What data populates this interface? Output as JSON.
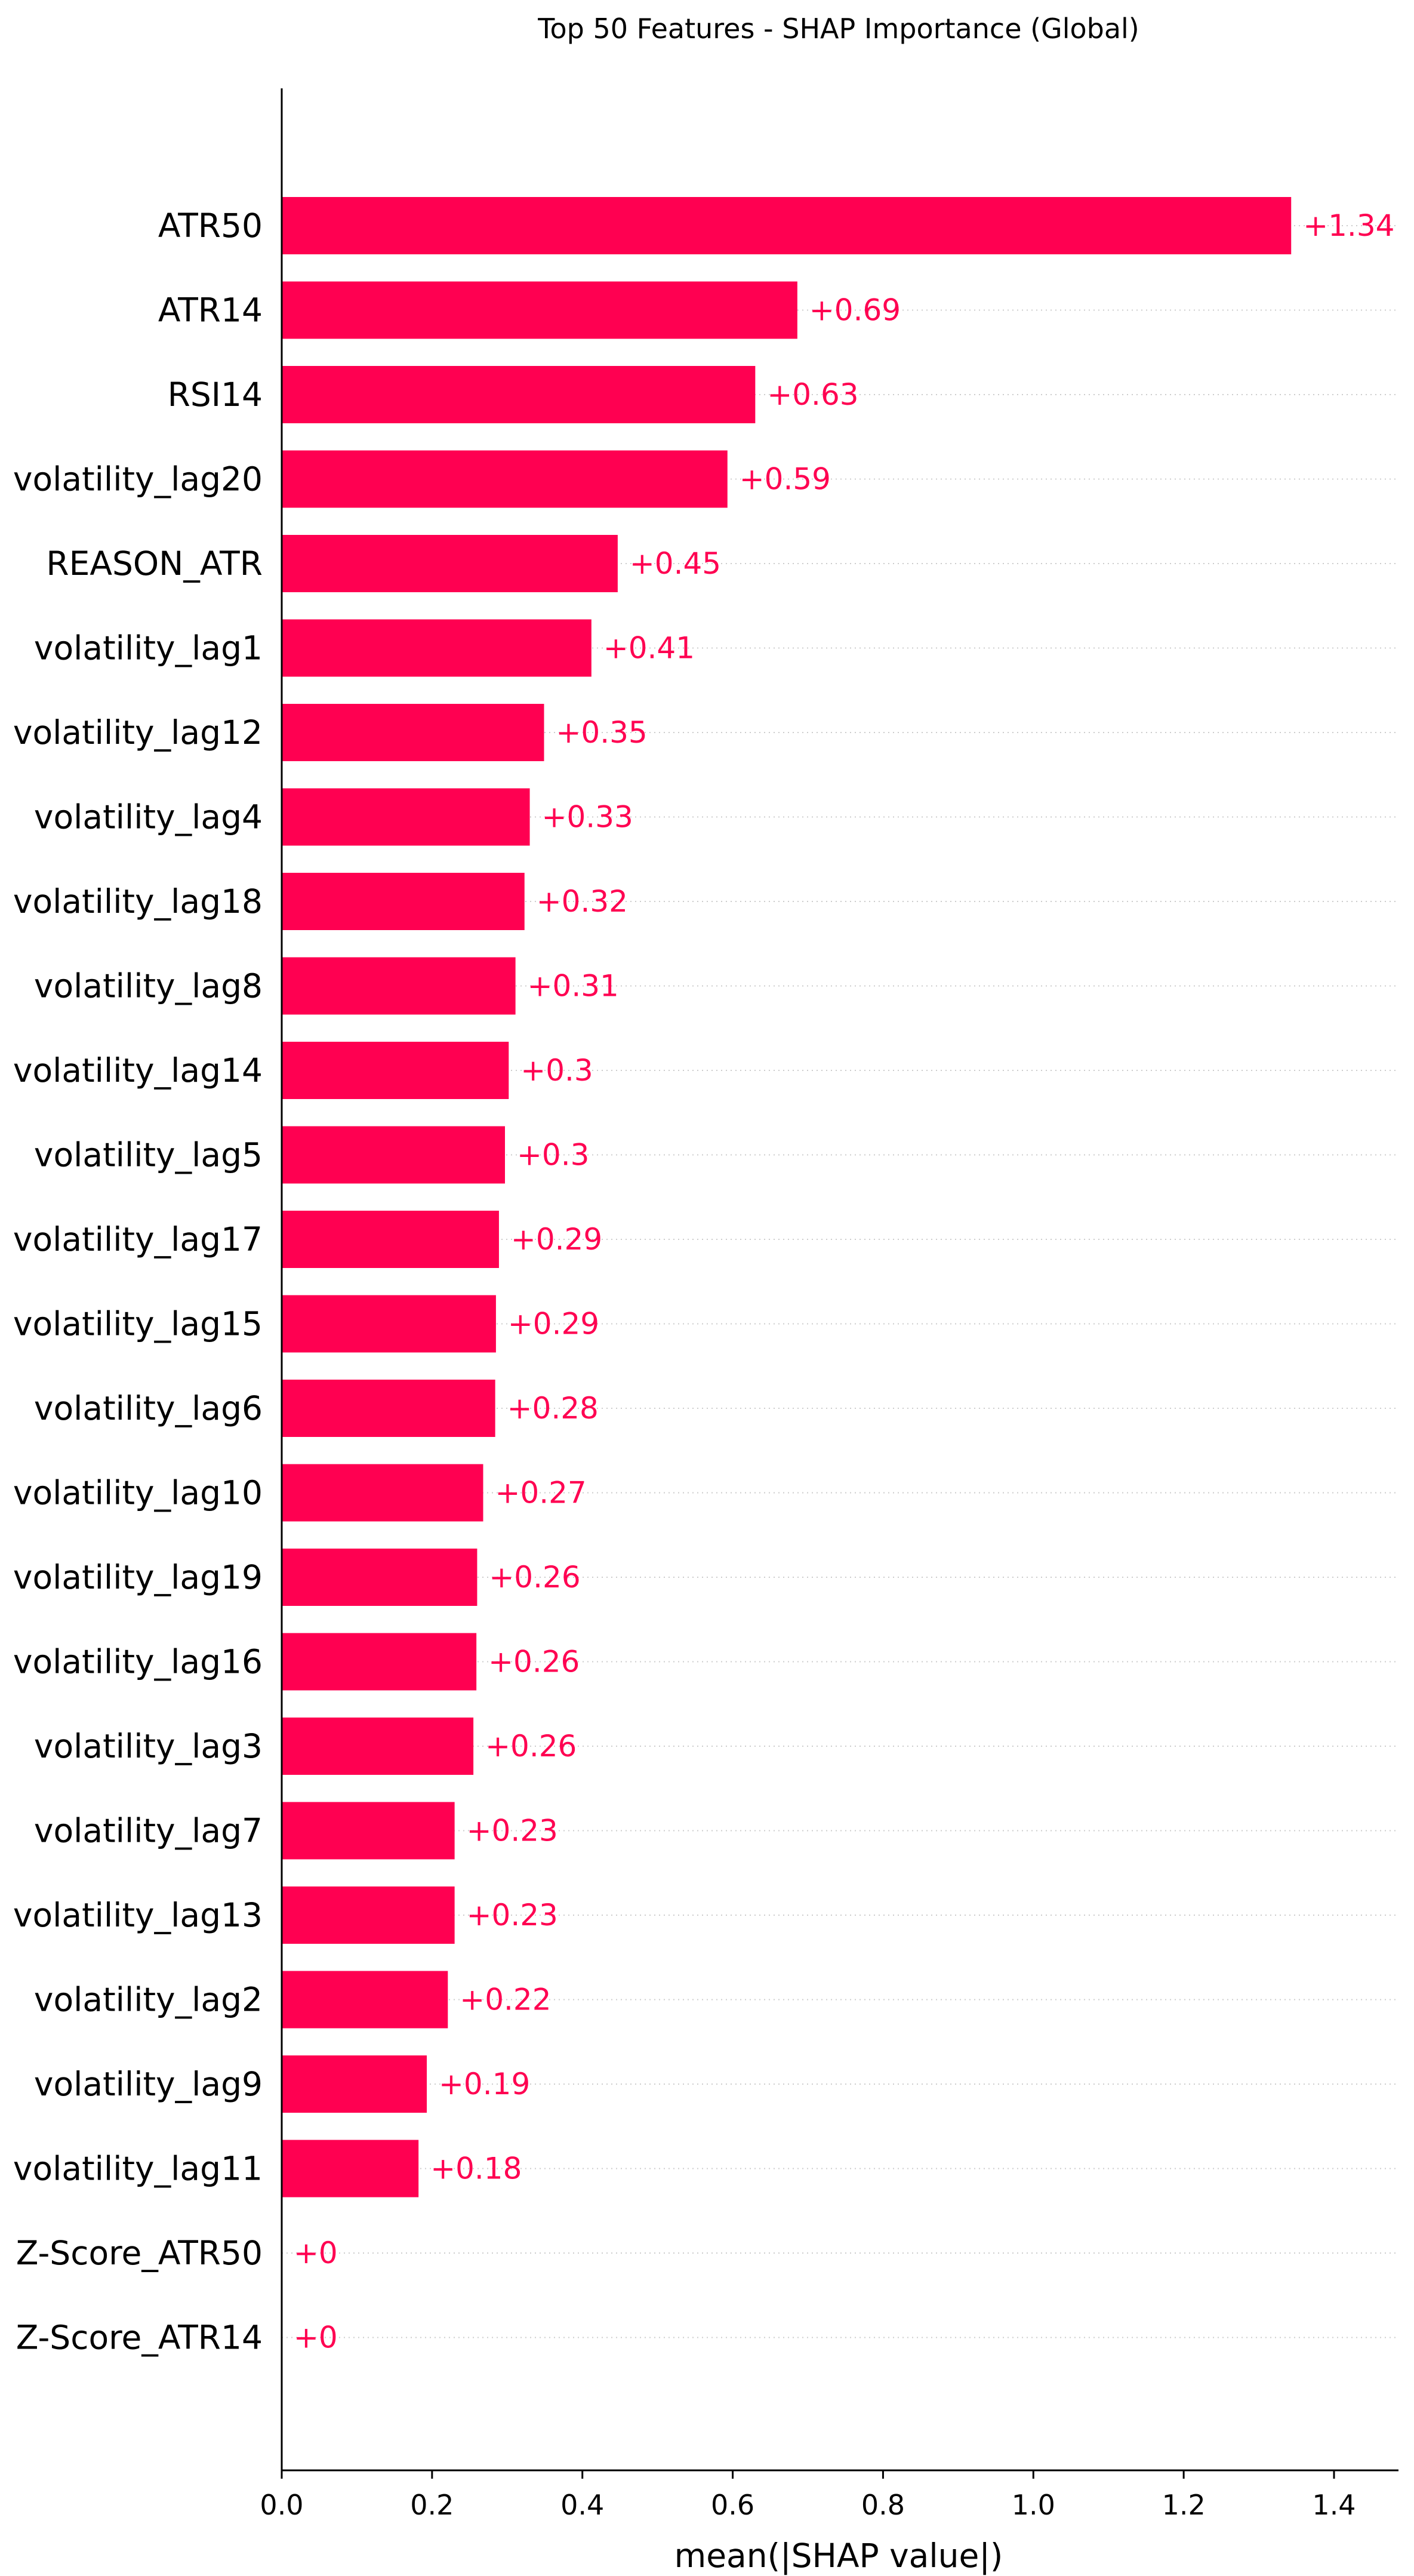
{
  "chart_data": {
    "type": "bar",
    "orientation": "horizontal",
    "title": "Top 50 Features - SHAP Importance (Global)",
    "xlabel": "mean(|SHAP value|)",
    "ylabel": "",
    "xlim": [
      0,
      1.48
    ],
    "xticks": [
      "0.0",
      "0.2",
      "0.4",
      "0.6",
      "0.8",
      "1.0",
      "1.2",
      "1.4"
    ],
    "xtick_values": [
      0,
      0.2,
      0.4,
      0.6,
      0.8,
      1.0,
      1.2,
      1.4
    ],
    "bar_color": "#ff0051",
    "label_color": "#ff0051",
    "grid": "dotted horizontal guides",
    "categories": [
      "ATR50",
      "ATR14",
      "RSI14",
      "volatility_lag20",
      "REASON_ATR",
      "volatility_lag1",
      "volatility_lag12",
      "volatility_lag4",
      "volatility_lag18",
      "volatility_lag8",
      "volatility_lag14",
      "volatility_lag5",
      "volatility_lag17",
      "volatility_lag15",
      "volatility_lag6",
      "volatility_lag10",
      "volatility_lag19",
      "volatility_lag16",
      "volatility_lag3",
      "volatility_lag7",
      "volatility_lag13",
      "volatility_lag2",
      "volatility_lag9",
      "volatility_lag11",
      "Z-Score_ATR50",
      "Z-Score_ATR14"
    ],
    "values": [
      1.343,
      0.686,
      0.63,
      0.593,
      0.447,
      0.412,
      0.349,
      0.33,
      0.323,
      0.311,
      0.302,
      0.297,
      0.289,
      0.285,
      0.284,
      0.268,
      0.26,
      0.259,
      0.255,
      0.23,
      0.23,
      0.221,
      0.193,
      0.182,
      0.0,
      0.0
    ],
    "value_labels": [
      "+1.34",
      "+0.69",
      "+0.63",
      "+0.59",
      "+0.45",
      "+0.41",
      "+0.35",
      "+0.33",
      "+0.32",
      "+0.31",
      "+0.3",
      "+0.3",
      "+0.29",
      "+0.29",
      "+0.28",
      "+0.27",
      "+0.26",
      "+0.26",
      "+0.26",
      "+0.23",
      "+0.23",
      "+0.22",
      "+0.19",
      "+0.18",
      "+0",
      "+0"
    ]
  }
}
